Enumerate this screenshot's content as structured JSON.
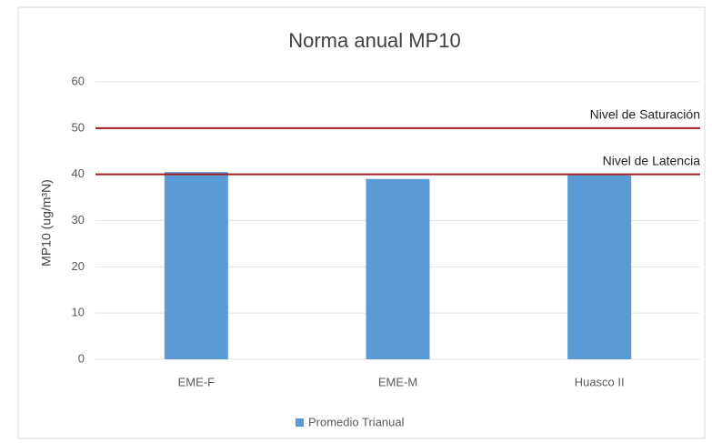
{
  "chart_data": {
    "type": "bar",
    "title": "Norma anual MP10",
    "y_label": "MP10 (ug/m³N)",
    "categories": [
      "EME-F",
      "EME-M",
      "Huasco II"
    ],
    "series": [
      {
        "name": "Promedio Trianual",
        "color": "#5b9bd5",
        "values": [
          40.5,
          39,
          39.8
        ]
      }
    ],
    "ylim": [
      0,
      60
    ],
    "yticks": [
      0,
      10,
      20,
      30,
      40,
      50,
      60
    ],
    "grid": true,
    "reference_lines": [
      {
        "label": "Nivel de Saturación",
        "value": 50,
        "color": "#a01c24"
      },
      {
        "label": "Nivel de Latencia",
        "value": 40,
        "color": "#a01c24"
      }
    ],
    "legend": "bottom"
  }
}
